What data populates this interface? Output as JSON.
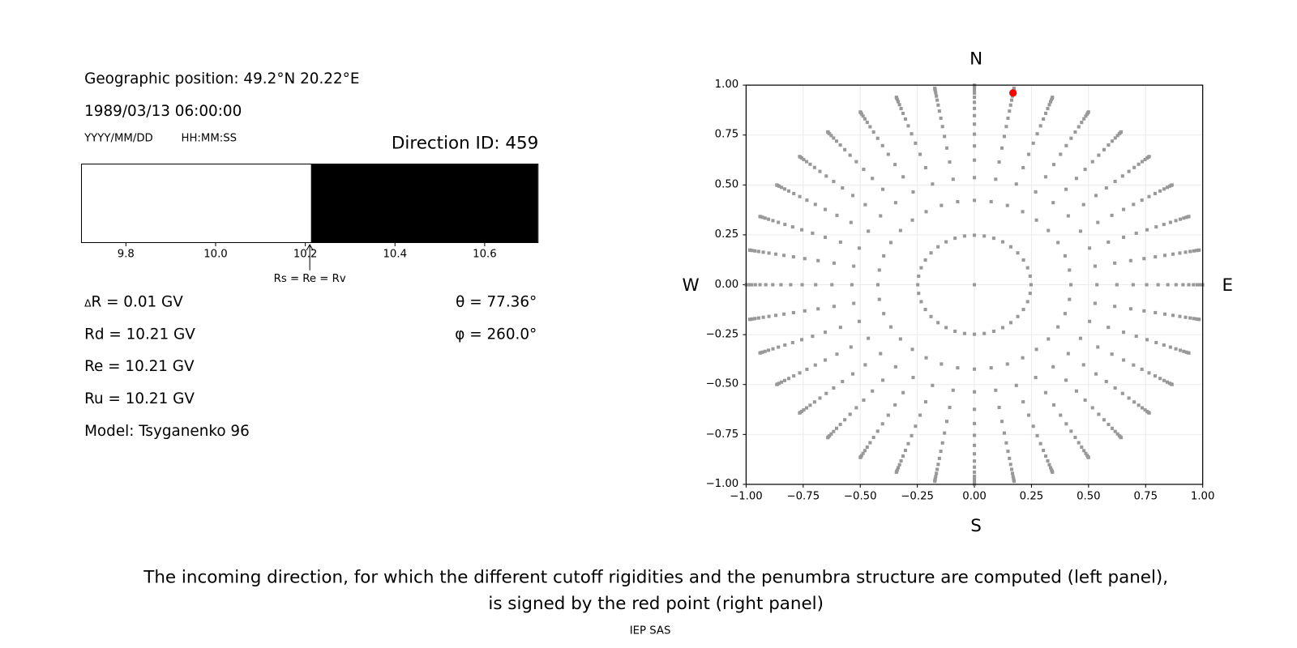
{
  "left_panel": {
    "geo_position": "Geographic position: 49.2°N 20.22°E",
    "datetime": "1989/03/13 06:00:00",
    "date_format": "YYYY/MM/DD",
    "time_format": "HH:MM:SS",
    "direction_id": "Direction ID: 459",
    "delta_r": "R = 0.01 GV",
    "delta_symbol": "Δ",
    "rd": "Rd = 10.21 GV",
    "re": "Re = 10.21 GV",
    "ru": "Ru = 10.21 GV",
    "model": "Model: Tsyganenko 96",
    "theta": "θ = 77.36°",
    "phi": "φ = 260.0°"
  },
  "caption": {
    "line1": "The incoming direction, for which the different cutoff rigidities and the penumbra structure are computed (left panel),",
    "line2": "is signed by the red point (right panel)",
    "credit": "IEP SAS"
  },
  "chart_data": [
    {
      "type": "bar",
      "description_kind": "penumbra-strip",
      "xlim": [
        9.7,
        10.72
      ],
      "x_ticks": [
        "9.8",
        "10.0",
        "10.2",
        "10.4",
        "10.6"
      ],
      "x_tick_values": [
        9.8,
        10.0,
        10.2,
        10.4,
        10.6
      ],
      "segments": [
        {
          "from": 9.7,
          "to": 10.21,
          "color": "#ffffff"
        },
        {
          "from": 10.21,
          "to": 10.72,
          "color": "#000000"
        }
      ],
      "annotation": {
        "text": "Rs = Re = Rv",
        "x": 10.21
      }
    },
    {
      "type": "scatter",
      "xlim": [
        -1.0,
        1.0
      ],
      "ylim": [
        -1.0,
        1.0
      ],
      "grid": true,
      "x_ticks": [
        "−1.00",
        "−0.75",
        "−0.50",
        "−0.25",
        "0.00",
        "0.25",
        "0.50",
        "0.75",
        "1.00"
      ],
      "y_ticks": [
        "−1.00",
        "−0.75",
        "−0.50",
        "−0.25",
        "0.00",
        "0.25",
        "0.50",
        "0.75",
        "1.00"
      ],
      "tick_values": [
        -1.0,
        -0.75,
        -0.5,
        -0.25,
        0.0,
        0.25,
        0.5,
        0.75,
        1.0
      ],
      "compass": {
        "top": "N",
        "bottom": "S",
        "left": "W",
        "right": "E"
      },
      "directions": {
        "color": "#999999",
        "center": [
          0,
          0
        ],
        "radii": [
          0.248,
          0.4227,
          0.5367,
          0.6242,
          0.6953,
          0.7545,
          0.8047,
          0.8472,
          0.8833,
          0.9138,
          0.9391,
          0.9596,
          0.9758,
          0.9877,
          0.9956,
          0.9995
        ],
        "azimuths_deg": [
          0,
          10,
          20,
          30,
          40,
          50,
          60,
          70,
          80,
          90,
          100,
          110,
          120,
          130,
          140,
          150,
          160,
          170,
          180,
          190,
          200,
          210,
          220,
          230,
          240,
          250,
          260,
          270,
          280,
          290,
          300,
          310,
          320,
          330,
          340,
          350
        ]
      },
      "selected": {
        "x": 0.169,
        "y": 0.961,
        "color": "#ff0000"
      }
    }
  ]
}
